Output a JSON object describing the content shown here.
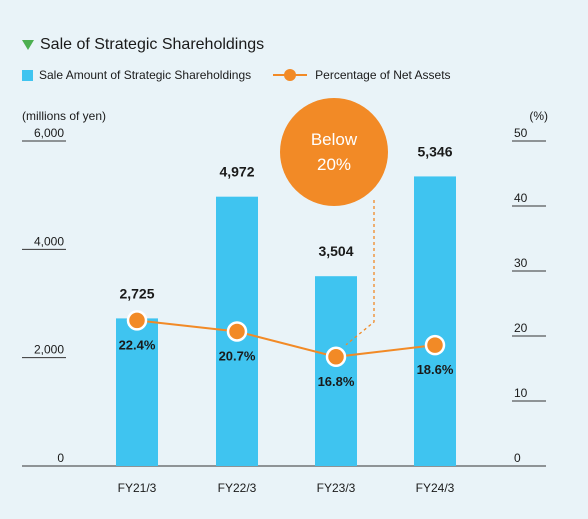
{
  "title": "Sale of Strategic Shareholdings",
  "legend": {
    "bar_label": "Sale Amount of Strategic Shareholdings",
    "line_label": "Percentage of Net Assets"
  },
  "colors": {
    "bar": "#3fc4f0",
    "line": "#f28a26",
    "background": "#e9f3f8",
    "title_marker": "#4caf50"
  },
  "icons": {
    "title_marker": "down-triangle-icon"
  },
  "callout": {
    "line1": "Below",
    "line2": "20%"
  },
  "chart_data": {
    "type": "bar",
    "title": "Sale of Strategic Shareholdings",
    "categories": [
      "FY21/3",
      "FY22/3",
      "FY23/3",
      "FY24/3"
    ],
    "ylabel": "(millions of yen)",
    "y2label": "(%)",
    "ylim": [
      0,
      6000
    ],
    "y2lim": [
      0,
      50
    ],
    "yticks": [
      "0",
      "2,000",
      "4,000",
      "6,000"
    ],
    "y2ticks": [
      "0",
      "10",
      "20",
      "30",
      "40",
      "50"
    ],
    "grid": false,
    "legend_position": "top-left",
    "series": [
      {
        "name": "Sale Amount of Strategic Shareholdings",
        "type": "bar",
        "axis": "left",
        "values": [
          2725,
          4972,
          3504,
          5346
        ],
        "labels": [
          "2,725",
          "4,972",
          "3,504",
          "5,346"
        ]
      },
      {
        "name": "Percentage of Net Assets",
        "type": "line",
        "axis": "right",
        "values": [
          22.4,
          20.7,
          16.8,
          18.6
        ],
        "labels": [
          "22.4%",
          "20.7%",
          "16.8%",
          "18.6%"
        ]
      }
    ]
  }
}
